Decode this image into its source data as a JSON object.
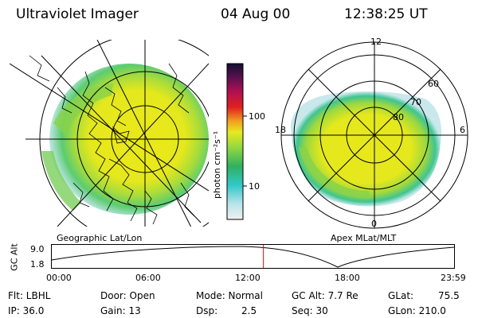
{
  "header": {
    "title": "Ultraviolet Imager",
    "date": "04 Aug 00",
    "time": "12:38:25 UT"
  },
  "colors": {
    "aurora_yellow": "#e8e81a",
    "aurora_green": "#8ad24a",
    "aurora_cyan": "#33c4c4",
    "grid_line": "#000000",
    "time_marker": "#ff0000"
  },
  "left_map": {
    "caption": "Geographic Lat/Lon"
  },
  "right_map": {
    "caption": "Apex MLat/MLT",
    "mlt_labels": [
      "12",
      "18",
      "6",
      "0"
    ],
    "mlat_labels": [
      "60",
      "70",
      "80"
    ]
  },
  "colorbar": {
    "unit_label": "photon cm⁻²s⁻¹",
    "ticks": [
      "100",
      "10"
    ]
  },
  "altitude_plot": {
    "ylabel": "GC Alt",
    "yticks": [
      "9.0",
      "1.8"
    ],
    "xticks": [
      "00:00",
      "06:00",
      "12:00",
      "18:00",
      "23:59"
    ],
    "current_time_fraction": 0.526
  },
  "info": {
    "flt": "Flt: LBHL",
    "ip": "IP: 36.0",
    "door": "Door: Open",
    "gain": "Gain: 13",
    "mode": "Mode: Normal",
    "dsp": "Dsp:",
    "dsp_value": "2.5",
    "gc_alt": "GC Alt: 7.7 Re",
    "seq": "Seq: 30",
    "glat": "GLat:",
    "glat_value": "75.5",
    "glon": "GLon: 210.0"
  }
}
